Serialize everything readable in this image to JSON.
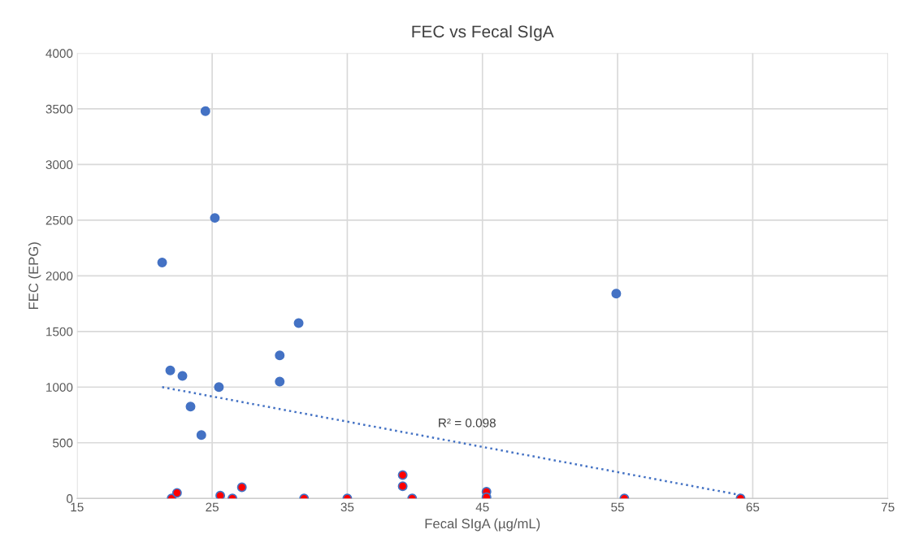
{
  "chart_data": {
    "type": "scatter",
    "title": "FEC vs Fecal SIgA",
    "xlabel": "Fecal SIgA (µg/mL)",
    "ylabel": "FEC (EPG)",
    "series": [
      {
        "color": "#4472c4",
        "x": [
          21.3,
          24.5,
          25.2,
          25.5,
          23.4,
          21.9,
          22.8,
          24.2,
          30.0,
          30.0,
          31.4,
          54.9
        ],
        "values": [
          2120,
          3480,
          2520,
          1000,
          825,
          1150,
          1100,
          570,
          1285,
          1050,
          1575,
          1840
        ]
      },
      {
        "color": "#ff0000",
        "x": [
          22.0,
          22.4,
          25.6,
          26.5,
          27.2,
          31.8,
          35.0,
          39.1,
          39.1,
          39.8,
          45.3,
          45.3,
          55.5,
          64.1
        ],
        "values": [
          0,
          50,
          25,
          0,
          100,
          0,
          0,
          210,
          110,
          0,
          60,
          10,
          0,
          0
        ]
      },
      {
        "type": "line",
        "marker": "none",
        "line_style": "dotted",
        "color": "#4472c4",
        "x": [
          21.3,
          64.1
        ],
        "values": [
          1000,
          30
        ]
      }
    ],
    "annotations": [
      "R² = 0.098"
    ],
    "xlim": [
      15,
      75
    ],
    "xticks": [
      15,
      25,
      35,
      45,
      55,
      65,
      75
    ],
    "ylim": [
      0,
      4000
    ],
    "yticks": [
      0,
      500,
      1000,
      1500,
      2000,
      2500,
      3000,
      3500,
      4000
    ],
    "grid": true,
    "marker": "circle"
  }
}
